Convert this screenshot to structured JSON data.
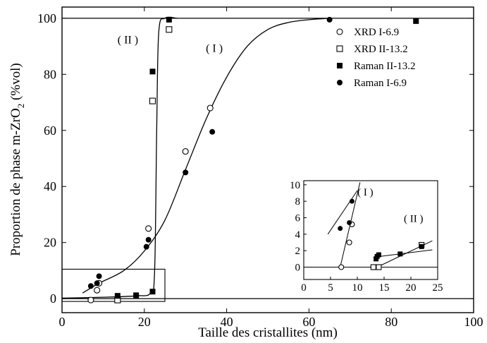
{
  "chart_data": {
    "main": {
      "type": "scatter",
      "xlabel": "Taille des cristallites (nm)",
      "ylabel_main": "Proportion de phase m-ZrO",
      "ylabel_sub": "2",
      "ylabel_tail": " (%vol)",
      "xlim": [
        0,
        100
      ],
      "ylim": [
        -5,
        104
      ],
      "x_ticks": [
        0,
        20,
        40,
        60,
        80,
        100
      ],
      "y_ticks": [
        0,
        20,
        40,
        60,
        80,
        100
      ],
      "x_tick_labels": [
        "0",
        "20",
        "40",
        "60",
        "80",
        "100"
      ],
      "y_tick_labels": [
        "0",
        "20",
        "40",
        "60",
        "80",
        "100"
      ],
      "reference_lines": [
        0,
        100
      ],
      "legend_position": "top-right",
      "series": [
        {
          "name": "XRD I-6.9",
          "marker": "open-circle",
          "points": [
            [
              7,
              -0.5
            ],
            [
              8.5,
              3
            ],
            [
              9,
              5.5
            ],
            [
              21,
              25
            ],
            [
              30,
              52.5
            ],
            [
              36,
              68
            ]
          ]
        },
        {
          "name": "XRD II-13.2",
          "marker": "open-square",
          "points": [
            [
              13.5,
              -0.5
            ],
            [
              22,
              70.5
            ],
            [
              26,
              96
            ]
          ]
        },
        {
          "name": "Raman II-13.2",
          "marker": "filled-square",
          "points": [
            [
              13.5,
              1
            ],
            [
              18,
              1.2
            ],
            [
              22,
              2.5
            ],
            [
              22,
              81
            ],
            [
              26,
              99.5
            ],
            [
              86,
              99
            ]
          ]
        },
        {
          "name": "Raman I-6.9",
          "marker": "filled-circle",
          "points": [
            [
              7,
              4.5
            ],
            [
              8.5,
              5.5
            ],
            [
              9,
              8
            ],
            [
              20.5,
              18.5
            ],
            [
              21,
              21
            ],
            [
              30,
              45
            ],
            [
              36.5,
              59.5
            ],
            [
              65,
              99.5
            ]
          ]
        }
      ],
      "curves": [
        {
          "label": "( I )",
          "label_at": [
            37,
            88
          ],
          "points": [
            [
              5,
              2
            ],
            [
              9,
              5.5
            ],
            [
              15,
              10
            ],
            [
              20,
              17
            ],
            [
              25,
              28
            ],
            [
              30,
              46
            ],
            [
              35,
              64
            ],
            [
              40,
              79
            ],
            [
              45,
              90
            ],
            [
              50,
              96
            ],
            [
              55,
              98.5
            ],
            [
              60,
              99.5
            ],
            [
              65,
              100
            ]
          ]
        },
        {
          "label": "( II )",
          "label_at": [
            16,
            91
          ],
          "points": [
            [
              0,
              0.2
            ],
            [
              10,
              0.5
            ],
            [
              18,
              1
            ],
            [
              21.5,
              2
            ],
            [
              22.5,
              10
            ],
            [
              23,
              60
            ],
            [
              23.5,
              95
            ],
            [
              25,
              100
            ],
            [
              28,
              100
            ]
          ]
        }
      ],
      "inset_box": {
        "x": [
          0,
          25
        ],
        "y": [
          -1,
          10.5
        ]
      }
    },
    "inset": {
      "type": "scatter",
      "xlim": [
        0,
        25
      ],
      "ylim": [
        -1.5,
        10.5
      ],
      "x_ticks": [
        0,
        5,
        10,
        15,
        20,
        25
      ],
      "y_ticks": [
        0,
        2,
        4,
        6,
        8,
        10
      ],
      "x_tick_labels": [
        "0",
        "5",
        "10",
        "15",
        "20",
        "25"
      ],
      "y_tick_labels": [
        "0",
        "2",
        "4",
        "6",
        "8",
        "10"
      ],
      "reference_line": 0,
      "series": [
        {
          "name": "XRD I-6.9",
          "marker": "open-circle",
          "points": [
            [
              7,
              0
            ],
            [
              8.5,
              3
            ],
            [
              9,
              5.2
            ]
          ]
        },
        {
          "name": "XRD II-13.2",
          "marker": "open-square",
          "points": [
            [
              13,
              0
            ],
            [
              14,
              0
            ],
            [
              22,
              2.7
            ]
          ]
        },
        {
          "name": "Raman II-13.2",
          "marker": "filled-square",
          "points": [
            [
              13.5,
              1
            ],
            [
              13.7,
              1.3
            ],
            [
              14,
              1.5
            ],
            [
              18,
              1.6
            ],
            [
              22,
              2.5
            ]
          ]
        },
        {
          "name": "Raman I-6.9",
          "marker": "filled-circle",
          "points": [
            [
              6.8,
              4.7
            ],
            [
              8.5,
              5.4
            ],
            [
              9,
              8
            ]
          ]
        }
      ],
      "lines": [
        {
          "points": [
            [
              4.5,
              4
            ],
            [
              10,
              9.3
            ]
          ]
        },
        {
          "points": [
            [
              6.8,
              0
            ],
            [
              10.5,
              10.3
            ]
          ]
        },
        {
          "points": [
            [
              13,
              1.2
            ],
            [
              24,
              2.1
            ]
          ]
        },
        {
          "points": [
            [
              13.7,
              0
            ],
            [
              24,
              3.2
            ]
          ]
        }
      ],
      "labels": [
        {
          "text": "( I )",
          "at": [
            11.5,
            8.7
          ]
        },
        {
          "text": "( II )",
          "at": [
            20.5,
            5.5
          ]
        }
      ]
    }
  }
}
